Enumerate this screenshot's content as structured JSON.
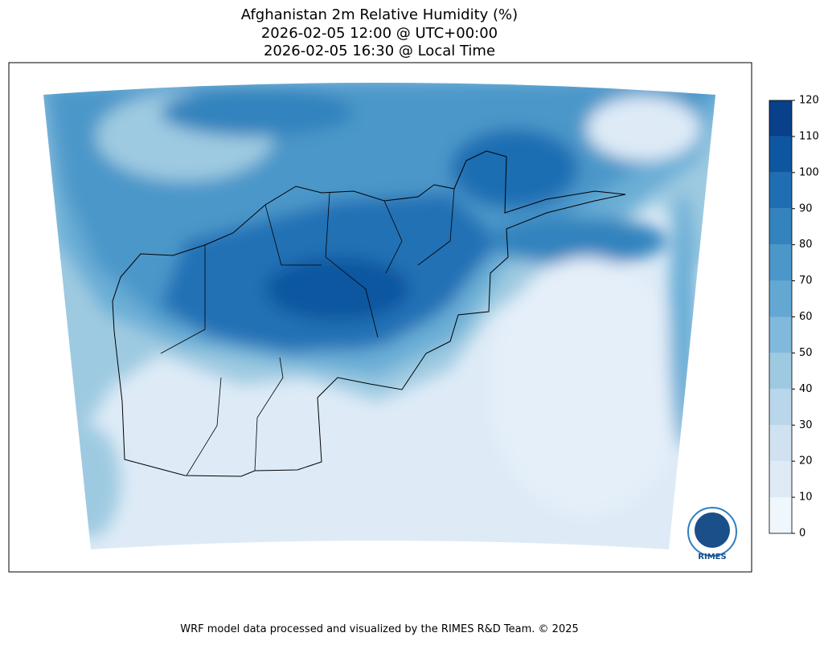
{
  "title": [
    "Afghanistan 2m Relative Humidity (%)",
    "2026-02-05 12:00 @ UTC+00:00",
    "2026-02-05 16:30 @ Local Time"
  ],
  "colorbar": {
    "ticks": [
      0,
      10,
      20,
      30,
      40,
      50,
      60,
      70,
      80,
      90,
      100,
      110,
      120
    ],
    "colors": [
      "#eff6fc",
      "#deebf7",
      "#d0e2f2",
      "#bad6eb",
      "#9ecae1",
      "#81b9dd",
      "#63a8d3",
      "#4b97c9",
      "#3383be",
      "#1f6eb3",
      "#0c57a0",
      "#08408a"
    ]
  },
  "logo": "RIMES",
  "footer": "WRF model data processed and visualized by the RIMES R&D Team. © 2025"
}
